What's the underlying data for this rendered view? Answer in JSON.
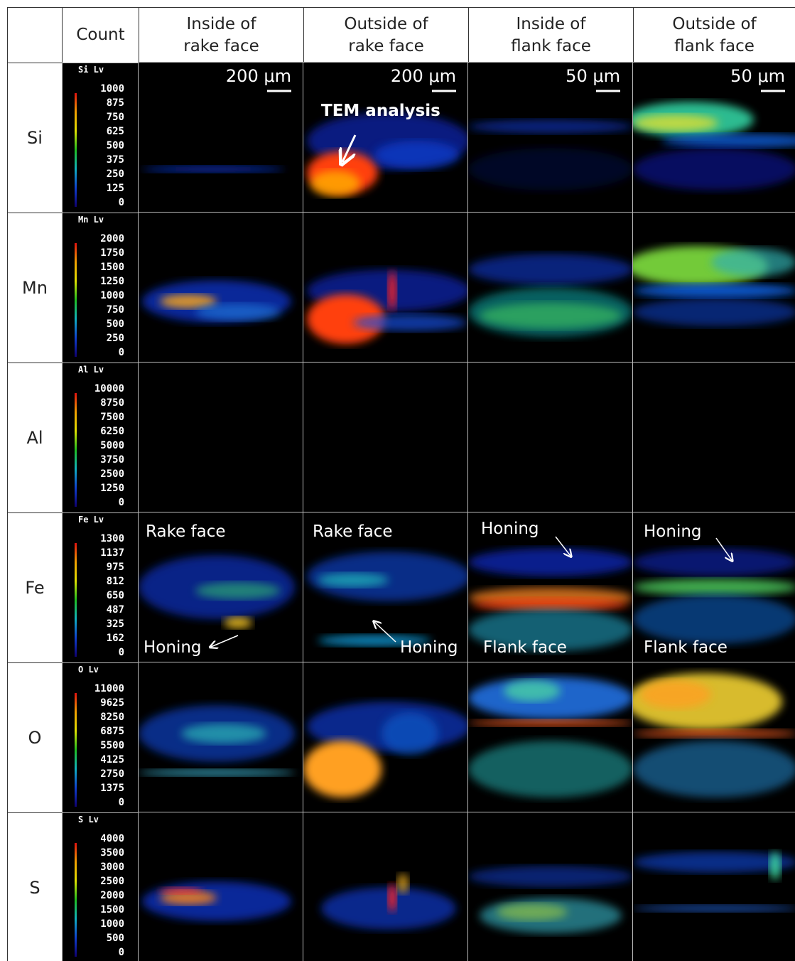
{
  "header": {
    "count": "Count",
    "columns": [
      [
        "Inside of",
        "rake face"
      ],
      [
        "Outside of",
        "rake face"
      ],
      [
        "Inside of",
        "flank face"
      ],
      [
        "Outside of",
        "flank face"
      ]
    ]
  },
  "scale_bars": [
    "200 μm",
    "200 μm",
    "50 μm",
    "50 μm"
  ],
  "rows": [
    {
      "element": "Si",
      "scale_title": "Si Lv",
      "scale_ticks": [
        "1000",
        "875",
        "750",
        "625",
        "500",
        "375",
        "250",
        "125",
        "0"
      ]
    },
    {
      "element": "Mn",
      "scale_title": "Mn Lv",
      "scale_ticks": [
        "2000",
        "1750",
        "1500",
        "1250",
        "1000",
        "750",
        "500",
        "250",
        "0"
      ]
    },
    {
      "element": "Al",
      "scale_title": "Al Lv",
      "scale_ticks": [
        "10000",
        "8750",
        "7500",
        "6250",
        "5000",
        "3750",
        "2500",
        "1250",
        "0"
      ]
    },
    {
      "element": "Fe",
      "scale_title": "Fe Lv",
      "scale_ticks": [
        "1300",
        "1137",
        "975",
        "812",
        "650",
        "487",
        "325",
        "162",
        "0"
      ]
    },
    {
      "element": "O",
      "scale_title": "O  Lv",
      "scale_ticks": [
        "11000",
        "9625",
        "8250",
        "6875",
        "5500",
        "4125",
        "2750",
        "1375",
        "0"
      ]
    },
    {
      "element": "S",
      "scale_title": "S  Lv",
      "scale_ticks": [
        "4000",
        "3500",
        "3000",
        "2500",
        "2000",
        "1500",
        "1000",
        "500",
        "0"
      ]
    }
  ],
  "annotations": {
    "tem": "TEM analysis",
    "rake_face": "Rake face",
    "honing": "Honing",
    "flank_face": "Flank face"
  }
}
